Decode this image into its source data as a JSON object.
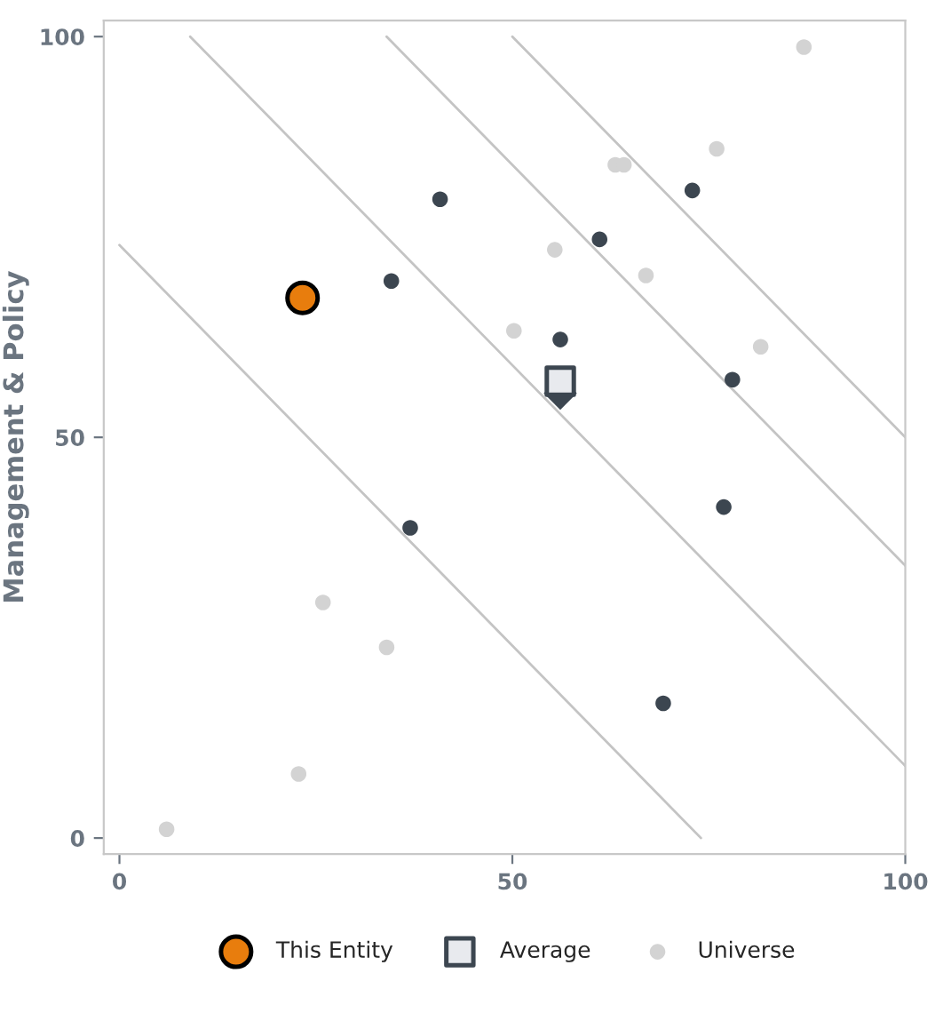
{
  "chart_data": {
    "type": "scatter",
    "ylabel": "Management & Policy",
    "xlim": [
      -2,
      100
    ],
    "ylim": [
      -2,
      102
    ],
    "xticks": [
      0,
      50,
      100
    ],
    "yticks": [
      0,
      50,
      100
    ],
    "grid": false,
    "legend": "bottom",
    "series": [
      {
        "type": "line",
        "color": "#c4c4c4",
        "x": [
          0,
          74
        ],
        "values": [
          74,
          0
        ]
      },
      {
        "type": "line",
        "color": "#c4c4c4",
        "x": [
          9,
          100
        ],
        "values": [
          100,
          9
        ]
      },
      {
        "type": "line",
        "color": "#c4c4c4",
        "x": [
          34,
          100
        ],
        "values": [
          100,
          34
        ]
      },
      {
        "type": "line",
        "color": "#c4c4c4",
        "x": [
          50,
          100
        ],
        "values": [
          100,
          50
        ]
      },
      {
        "name": "Universe",
        "color": "#d3d3d3",
        "marker": "circle",
        "x": [
          87.1,
          76.0,
          63.1,
          64.2,
          55.4,
          67.0,
          50.2,
          81.6,
          25.9,
          34.0,
          22.8,
          6.0
        ],
        "values": [
          98.7,
          86.0,
          84.0,
          84.0,
          73.4,
          70.2,
          63.3,
          61.3,
          29.4,
          23.8,
          8.0,
          1.1
        ]
      },
      {
        "color": "#3c4650",
        "marker": "circle",
        "x": [
          34.6,
          40.8,
          61.1,
          56.1,
          72.9,
          78.0,
          76.9,
          37.0,
          69.2
        ],
        "values": [
          69.5,
          79.7,
          74.7,
          62.2,
          80.8,
          57.2,
          41.3,
          38.7,
          16.8
        ]
      },
      {
        "color": "#3c4650",
        "marker": "diamond",
        "x": [
          56.1
        ],
        "values": [
          55.5
        ]
      },
      {
        "name": "Average",
        "color": "#e8eaee",
        "marker": "square",
        "x": [
          56.1
        ],
        "values": [
          57.0
        ]
      },
      {
        "name": "This Entity",
        "color": "#e87d0d",
        "marker": "circle",
        "x": [
          23.3
        ],
        "values": [
          67.4
        ]
      }
    ]
  }
}
